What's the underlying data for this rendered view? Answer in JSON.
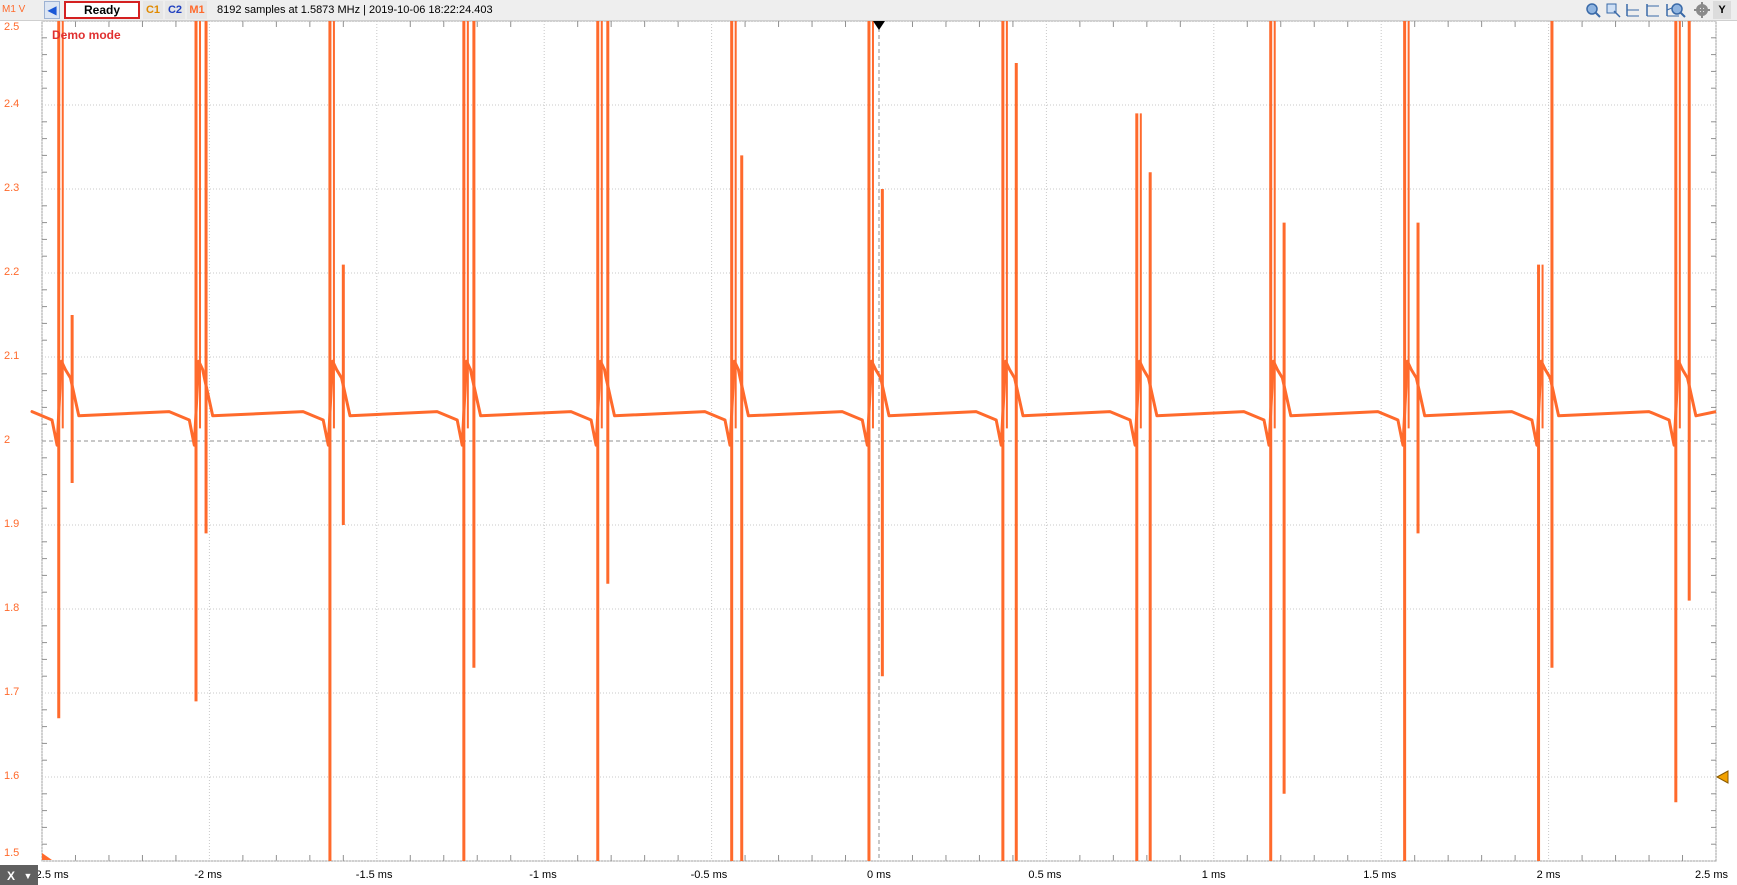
{
  "toolbar": {
    "channel_axis_label": "M1 V",
    "status": "Ready",
    "channels": [
      {
        "label": "C1",
        "color": "#e08a00"
      },
      {
        "label": "C2",
        "color": "#2040c0"
      },
      {
        "label": "M1",
        "color": "#ff6a2c"
      }
    ],
    "info": "8192 samples at 1.5873 MHz | 2019-10-06 18:22:24.403",
    "tools": [
      "zoom-fit-icon",
      "zoom-area-icon",
      "cursor-left-icon",
      "cursor-both-icon",
      "cursor-right-icon",
      "zoom-in-icon",
      "settings-gear-icon",
      "y-axis-icon"
    ],
    "y_button": "Y"
  },
  "plot": {
    "demo_mode": "Demo mode",
    "x_button": "X",
    "trace_color": "#ff6a2c"
  },
  "chart_data": {
    "type": "line",
    "xlabel": "",
    "ylabel": "M1 V",
    "x_unit": "ms",
    "xlim": [
      -2.5,
      2.5
    ],
    "ylim": [
      1.5,
      2.5
    ],
    "x_ticks": [
      "-2.5 ms",
      "-2 ms",
      "-1.5 ms",
      "-1 ms",
      "-0.5 ms",
      "0 ms",
      "0.5 ms",
      "1 ms",
      "1.5 ms",
      "2 ms",
      "2.5 ms"
    ],
    "y_ticks": [
      "2.5",
      "2.4",
      "2.3",
      "2.2",
      "2.1",
      "2",
      "1.9",
      "1.8",
      "1.7",
      "1.6",
      "1.5"
    ],
    "trigger_level": 1.6,
    "trigger_time": 0,
    "baseline": 2.035,
    "series": [
      {
        "spikes": [
          {
            "t": -2.45,
            "up": 2.5,
            "down": 1.67,
            "t2": -2.41,
            "up2": 2.15,
            "down2": 1.95
          },
          {
            "t": -2.04,
            "up": 2.5,
            "down": 1.69,
            "t2": -2.01,
            "up2": 2.5,
            "down2": 1.89
          },
          {
            "t": -1.64,
            "up": 2.5,
            "down": 1.5,
            "t2": -1.6,
            "up2": 2.21,
            "down2": 1.9
          },
          {
            "t": -1.24,
            "up": 2.5,
            "down": 1.5,
            "t2": -1.21,
            "up2": 2.5,
            "down2": 1.73
          },
          {
            "t": -0.84,
            "up": 2.5,
            "down": 1.5,
            "t2": -0.81,
            "up2": 2.5,
            "down2": 1.83
          },
          {
            "t": -0.44,
            "up": 2.5,
            "down": 1.5,
            "t2": -0.41,
            "up2": 2.34,
            "down2": 1.5
          },
          {
            "t": -0.03,
            "up": 2.5,
            "down": 1.5,
            "t2": 0.01,
            "up2": 2.3,
            "down2": 1.72
          },
          {
            "t": 0.37,
            "up": 2.5,
            "down": 1.5,
            "t2": 0.41,
            "up2": 2.45,
            "down2": 1.5
          },
          {
            "t": 0.77,
            "up": 2.39,
            "down": 1.5,
            "t2": 0.81,
            "up2": 2.32,
            "down2": 1.5
          },
          {
            "t": 1.17,
            "up": 2.5,
            "down": 1.5,
            "t2": 1.21,
            "up2": 2.26,
            "down2": 1.58
          },
          {
            "t": 1.57,
            "up": 2.5,
            "down": 1.5,
            "t2": 1.61,
            "up2": 2.26,
            "down2": 1.89
          },
          {
            "t": 1.97,
            "up": 2.21,
            "down": 1.5,
            "t2": 2.01,
            "up2": 2.5,
            "down2": 1.73
          },
          {
            "t": 2.38,
            "up": 2.5,
            "down": 1.57,
            "t2": 2.42,
            "up2": 2.5,
            "down2": 1.81
          }
        ]
      }
    ]
  }
}
